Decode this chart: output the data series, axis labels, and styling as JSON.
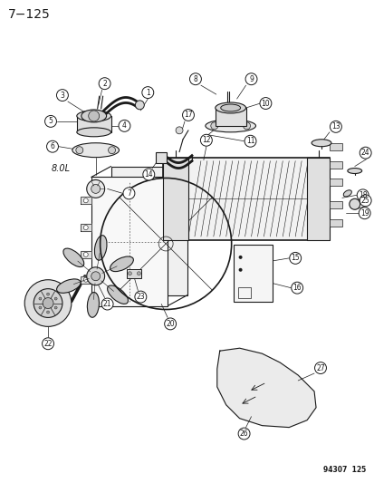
{
  "title": "7−125",
  "footnote": "94307  125",
  "bg_color": "#ffffff",
  "lc": "#1a1a1a",
  "label_8OL": "8.0L",
  "figsize": [
    4.14,
    5.33
  ],
  "dpi": 100
}
